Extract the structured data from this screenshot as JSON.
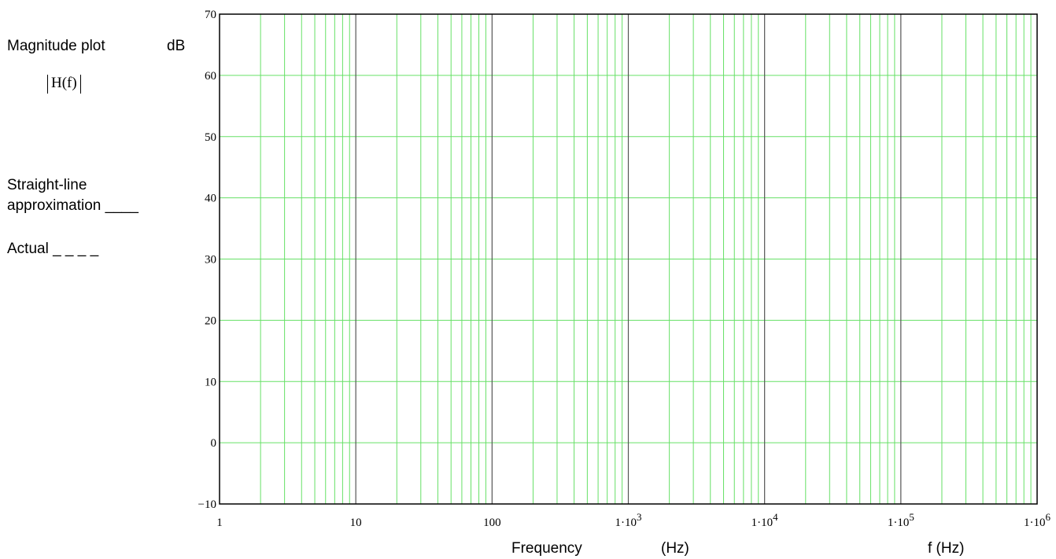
{
  "side_labels": {
    "magnitude_plot": "Magnitude plot",
    "db_unit": "dB",
    "hf_expression": "H(f)",
    "straight_line": "Straight-line",
    "approximation": "approximation ____",
    "actual": "Actual _ _ _ _"
  },
  "axis_labels": {
    "frequency": "Frequency",
    "hz": "(Hz)",
    "f_hz": "f (Hz)"
  },
  "chart_data": {
    "type": "line",
    "title": "",
    "xlabel": "Frequency (Hz)",
    "ylabel": "dB",
    "xscale": "log",
    "xlim": [
      1,
      1000000
    ],
    "ylim": [
      -10,
      70
    ],
    "y_ticks": [
      -10,
      0,
      10,
      20,
      30,
      40,
      50,
      60,
      70
    ],
    "x_ticks": [
      {
        "value": 1,
        "mantissa": "1",
        "exponent": ""
      },
      {
        "value": 10,
        "mantissa": "10",
        "exponent": ""
      },
      {
        "value": 100,
        "mantissa": "100",
        "exponent": ""
      },
      {
        "value": 1000,
        "mantissa": "1·10",
        "exponent": "3"
      },
      {
        "value": 10000,
        "mantissa": "1·10",
        "exponent": "4"
      },
      {
        "value": 100000,
        "mantissa": "1·10",
        "exponent": "5"
      },
      {
        "value": 1000000,
        "mantissa": "1·10",
        "exponent": "6"
      }
    ],
    "grid": true,
    "grid_color": "#66e066",
    "decade_line_color": "#555555",
    "series": []
  }
}
